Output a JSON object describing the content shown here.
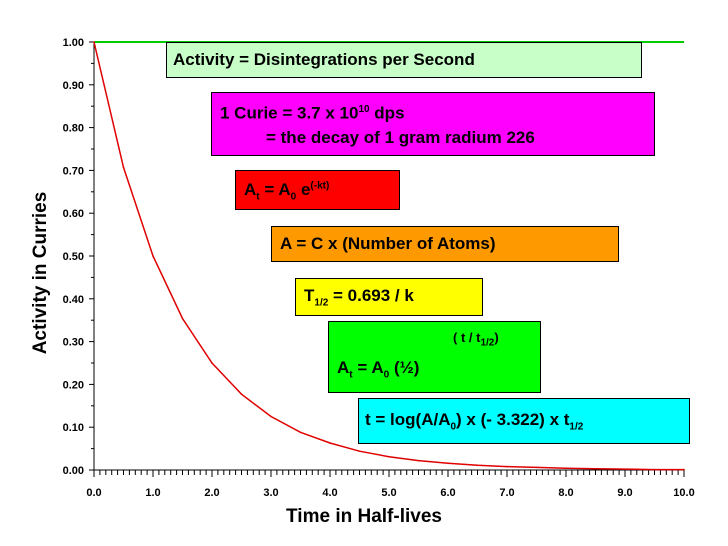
{
  "chart_data": {
    "type": "line",
    "xlabel": "Time in Half-lives",
    "ylabel": "Activity in Curries",
    "xlim": [
      0.0,
      10.0
    ],
    "ylim": [
      0.0,
      1.0
    ],
    "x_ticks": [
      "0.0",
      "1.0",
      "2.0",
      "3.0",
      "4.0",
      "5.0",
      "6.0",
      "7.0",
      "8.0",
      "9.0",
      "10.0"
    ],
    "y_ticks": [
      "0.00",
      "0.10",
      "0.20",
      "0.30",
      "0.40",
      "0.50",
      "0.60",
      "0.70",
      "0.80",
      "0.90",
      "1.00"
    ],
    "series": [
      {
        "color": "#e00000",
        "x": [
          0.0,
          0.5,
          1.0,
          1.5,
          2.0,
          2.5,
          3.0,
          3.5,
          4.0,
          4.5,
          5.0,
          5.5,
          6.0,
          6.5,
          7.0,
          7.5,
          8.0,
          8.5,
          9.0,
          9.5,
          10.0
        ],
        "y": [
          1.0,
          0.707,
          0.5,
          0.354,
          0.25,
          0.177,
          0.125,
          0.088,
          0.063,
          0.044,
          0.031,
          0.022,
          0.016,
          0.011,
          0.008,
          0.006,
          0.004,
          0.003,
          0.002,
          0.001,
          0.001
        ]
      }
    ],
    "top_line_color": "#00cc00",
    "grid": false
  },
  "annotations": {
    "activity": {
      "text": "Activity = Disintegrations per Second",
      "bg": "#c8ffc8"
    },
    "curie": {
      "line1_pre": "1 Curie = 3.7 x 10",
      "line1_sup": "10",
      "line1_post": " dps",
      "line2": "= the decay of 1 gram radium 226",
      "bg": "#ff00ff"
    },
    "at_exp": {
      "a": "A",
      "t": "t",
      "eq": " = A",
      "zero": "0",
      "e": " e",
      "sup": "(-kt)",
      "bg": "#ff0000"
    },
    "ca": {
      "text": "A = C x (Number of Atoms)",
      "bg": "#ff9900"
    },
    "half": {
      "t": "T",
      "sub": "1/2",
      "rest": " = 0.693 / k",
      "bg": "#ffff00"
    },
    "at_half": {
      "exp_pre": "( t / t",
      "exp_sub": "1/2",
      "exp_post": ")",
      "a": "A",
      "t": "t",
      "eq": " = A",
      "zero": "0",
      "rest": " (½)",
      "bg": "#00ff00"
    },
    "log": {
      "pre": "t = log(A/A",
      "zero": "0",
      "mid": ") x (- 3.322) x t",
      "sub": "1/2",
      "bg": "#00ffff"
    }
  }
}
